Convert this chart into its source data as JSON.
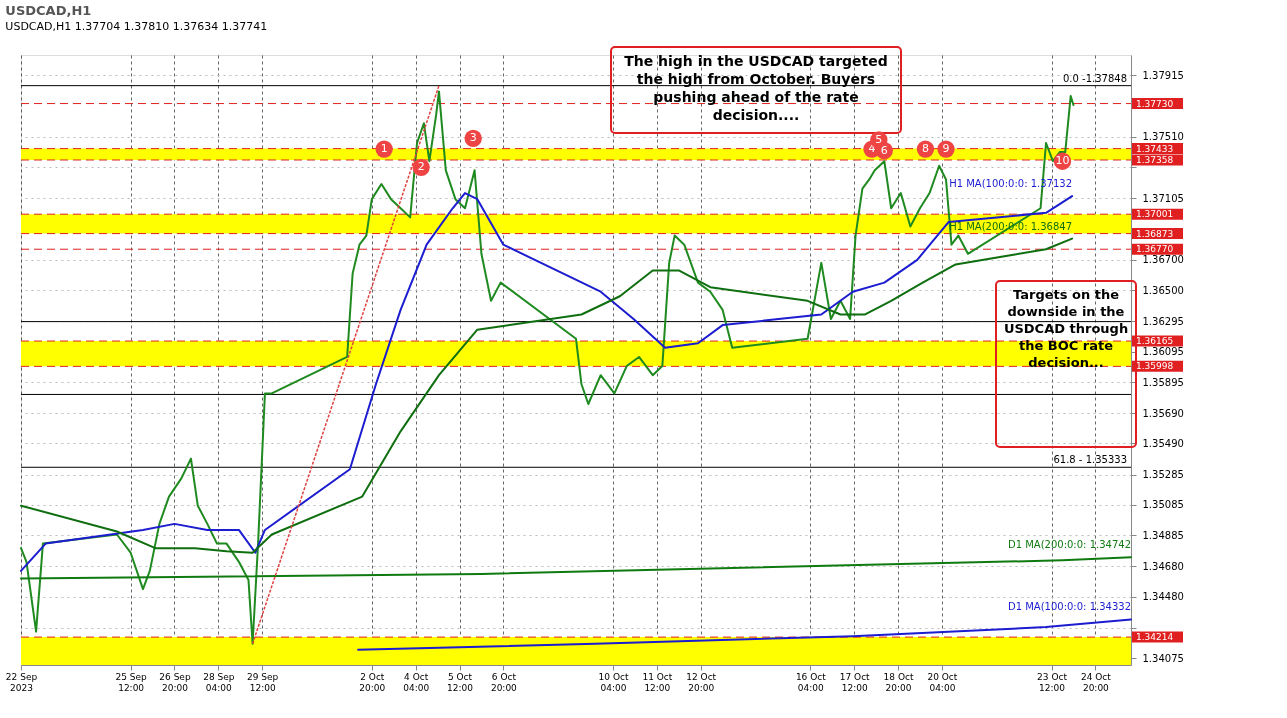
{
  "chart_data": {
    "type": "line",
    "title": "USDCAD,H1",
    "subtitle": "USDCAD,H1  1.37704 1.37810 1.37634 1.37741",
    "xlim": [
      "2023-09-22T04:00",
      "2023-10-25T22:00"
    ],
    "ylim": [
      1.3403,
      1.3805
    ],
    "xticks": [
      {
        "value": "2023-09-22T04:00",
        "label": "22 Sep 2023"
      },
      {
        "value": "2023-09-25T12:00",
        "label": "25 Sep 12:00"
      },
      {
        "value": "2023-09-26T20:00",
        "label": "26 Sep 20:00"
      },
      {
        "value": "2023-09-28T04:00",
        "label": "28 Sep 04:00"
      },
      {
        "value": "2023-09-29T12:00",
        "label": "29 Sep 12:00"
      },
      {
        "value": "2023-10-02T20:00",
        "label": "2 Oct 20:00"
      },
      {
        "value": "2023-10-04T04:00",
        "label": "4 Oct 04:00"
      },
      {
        "value": "2023-10-05T12:00",
        "label": "5 Oct 12:00"
      },
      {
        "value": "2023-10-06T20:00",
        "label": "6 Oct 20:00"
      },
      {
        "value": "2023-10-10T04:00",
        "label": "10 Oct 04:00"
      },
      {
        "value": "2023-10-11T12:00",
        "label": "11 Oct 12:00"
      },
      {
        "value": "2023-10-12T20:00",
        "label": "12 Oct 20:00"
      },
      {
        "value": "2023-10-16T04:00",
        "label": "16 Oct 04:00"
      },
      {
        "value": "2023-10-17T12:00",
        "label": "17 Oct 12:00"
      },
      {
        "value": "2023-10-18T20:00",
        "label": "18 Oct 20:00"
      },
      {
        "value": "2023-10-20T04:00",
        "label": "20 Oct 04:00"
      },
      {
        "value": "2023-10-23T12:00",
        "label": "23 Oct 12:00"
      },
      {
        "value": "2023-10-24T20:00",
        "label": "24 Oct 20:00"
      }
    ],
    "yticks": [
      1.37915,
      {
        "value": 1.3751,
        "label": "1.37510"
      },
      {
        "value": 1.3731,
        "label": null
      },
      1.37105,
      {
        "value": 1.367,
        "label": "1.36700"
      },
      {
        "value": 1.365,
        "label": "1.36500"
      },
      1.36295,
      1.36095,
      1.35895,
      {
        "value": 1.3569,
        "label": "1.35690"
      },
      {
        "value": 1.3549,
        "label": "1.35490"
      },
      1.35285,
      1.35085,
      1.34885,
      {
        "value": 1.3468,
        "label": "1.34680"
      },
      {
        "value": 1.3448,
        "label": "1.34480"
      },
      {
        "value": 1.34275,
        "label": null
      },
      1.34075
    ],
    "grid": true,
    "series": [
      {
        "color": "#1f8a1f",
        "x": [
          "2023-09-22T04:00",
          "2023-09-22T08:00",
          "2023-09-22T15:00",
          "2023-09-22T20:00",
          "2023-09-25T02:00",
          "2023-09-25T12:00",
          "2023-09-25T21:00",
          "2023-09-26T02:00",
          "2023-09-26T09:00",
          "2023-09-26T16:00",
          "2023-09-27T01:00",
          "2023-09-27T08:00",
          "2023-09-27T13:00",
          "2023-09-27T20:00",
          "2023-09-28T03:00",
          "2023-09-28T10:00",
          "2023-09-28T19:00",
          "2023-09-29T02:00",
          "2023-09-29T05:00",
          "2023-09-29T09:00",
          "2023-09-29T14:00",
          "2023-09-29T19:00",
          "2023-10-02T02:00",
          "2023-10-02T06:00",
          "2023-10-02T11:00",
          "2023-10-02T16:00",
          "2023-10-02T20:00",
          "2023-10-03T03:00",
          "2023-10-03T10:00",
          "2023-10-03T17:00",
          "2023-10-04T00:00",
          "2023-10-04T05:00",
          "2023-10-04T10:00",
          "2023-10-04T14:00",
          "2023-10-04T19:00",
          "2023-10-04T21:00",
          "2023-10-05T02:00",
          "2023-10-05T09:00",
          "2023-10-05T16:00",
          "2023-10-05T23:00",
          "2023-10-06T04:00",
          "2023-10-06T11:00",
          "2023-10-06T18:00",
          "2023-10-09T01:00",
          "2023-10-09T05:00",
          "2023-10-09T10:00",
          "2023-10-09T19:00",
          "2023-10-10T05:00",
          "2023-10-10T14:00",
          "2023-10-10T23:00",
          "2023-10-11T09:00",
          "2023-10-11T16:00",
          "2023-10-11T21:00",
          "2023-10-12T01:00",
          "2023-10-12T08:00",
          "2023-10-12T18:00",
          "2023-10-13T03:00",
          "2023-10-13T12:00",
          "2023-10-13T19:00",
          "2023-10-16T02:00",
          "2023-10-16T12:00",
          "2023-10-16T19:00",
          "2023-10-17T02:00",
          "2023-10-17T09:00",
          "2023-10-17T13:00",
          "2023-10-17T18:00",
          "2023-10-17T23:00",
          "2023-10-18T03:00",
          "2023-10-18T10:00",
          "2023-10-18T15:00",
          "2023-10-18T22:00",
          "2023-10-19T05:00",
          "2023-10-19T12:00",
          "2023-10-19T19:00",
          "2023-10-20T02:00",
          "2023-10-20T07:00",
          "2023-10-20T11:00",
          "2023-10-20T16:00",
          "2023-10-20T23:00",
          "2023-10-23T04:00",
          "2023-10-23T08:00",
          "2023-10-23T13:00",
          "2023-10-23T18:00",
          "2023-10-23T22:00",
          "2023-10-24T02:00",
          "2023-10-24T04:00"
        ],
        "values": [
          1.348,
          1.3471,
          1.3425,
          1.3483,
          1.3489,
          1.3477,
          1.3453,
          1.3465,
          1.3496,
          1.3514,
          1.3526,
          1.3539,
          1.3508,
          1.3496,
          1.3483,
          1.3483,
          1.3471,
          1.3459,
          1.3417,
          1.3483,
          1.3582,
          1.3582,
          1.3606,
          1.3661,
          1.368,
          1.3686,
          1.371,
          1.372,
          1.371,
          1.3704,
          1.3698,
          1.3747,
          1.376,
          1.3735,
          1.3766,
          1.3781,
          1.3729,
          1.371,
          1.3704,
          1.3729,
          1.3674,
          1.3643,
          1.3655,
          1.3618,
          1.3588,
          1.3575,
          1.3594,
          1.3582,
          1.36,
          1.3606,
          1.3594,
          1.36,
          1.3668,
          1.3686,
          1.368,
          1.3655,
          1.3649,
          1.3637,
          1.3612,
          1.3618,
          1.3668,
          1.3631,
          1.3643,
          1.3631,
          1.3686,
          1.3717,
          1.3723,
          1.3729,
          1.3735,
          1.3704,
          1.3714,
          1.3692,
          1.3704,
          1.3714,
          1.3732,
          1.3723,
          1.368,
          1.3686,
          1.3674,
          1.3704,
          1.3747,
          1.3735,
          1.3741,
          1.3741,
          1.3778,
          1.3772
        ]
      },
      {
        "name": "H1 MA(100:0:0: 1.37132",
        "color": "#1c1cd0",
        "x": [
          "2023-09-22T04:00",
          "2023-09-22T22:00",
          "2023-09-25T21:00",
          "2023-09-26T20:00",
          "2023-09-27T20:00",
          "2023-09-28T19:00",
          "2023-09-29T07:00",
          "2023-09-29T14:00",
          "2023-10-02T04:00",
          "2023-10-02T23:00",
          "2023-10-03T17:00",
          "2023-10-04T12:00",
          "2023-10-05T07:00",
          "2023-10-05T16:00",
          "2023-10-06T01:00",
          "2023-10-06T20:00",
          "2023-10-09T19:00",
          "2023-10-10T19:00",
          "2023-10-11T18:00",
          "2023-10-12T18:00",
          "2023-10-13T12:00",
          "2023-10-16T12:00",
          "2023-10-17T11:00",
          "2023-10-18T10:00",
          "2023-10-19T10:00",
          "2023-10-20T09:00",
          "2023-10-23T08:00",
          "2023-10-24T03:00"
        ],
        "values": [
          1.3465,
          1.3483,
          1.3492,
          1.3496,
          1.3492,
          1.3492,
          1.3477,
          1.3492,
          1.3532,
          1.3588,
          1.3637,
          1.368,
          1.3704,
          1.3714,
          1.371,
          1.368,
          1.3649,
          1.3631,
          1.3612,
          1.3615,
          1.3627,
          1.3634,
          1.3649,
          1.3655,
          1.367,
          1.3695,
          1.3701,
          1.3712
        ]
      },
      {
        "name": "H1 MA(200:0:0: 1.36847",
        "color": "#0f6e0f",
        "x": [
          "2023-09-22T04:00",
          "2023-09-25T02:00",
          "2023-09-26T06:00",
          "2023-09-27T11:00",
          "2023-09-28T10:00",
          "2023-09-29T05:00",
          "2023-09-29T19:00",
          "2023-10-02T13:00",
          "2023-10-03T17:00",
          "2023-10-04T21:00",
          "2023-10-06T01:00",
          "2023-10-09T05:00",
          "2023-10-10T09:00",
          "2023-10-11T09:00",
          "2023-10-12T04:00",
          "2023-10-13T03:00",
          "2023-10-16T02:00",
          "2023-10-17T02:00",
          "2023-10-17T20:00",
          "2023-10-18T15:00",
          "2023-10-19T14:00",
          "2023-10-20T14:00",
          "2023-10-23T08:00",
          "2023-10-24T03:00"
        ],
        "values": [
          1.3508,
          1.3491,
          1.348,
          1.348,
          1.3478,
          1.3477,
          1.3489,
          1.3514,
          1.3557,
          1.3594,
          1.3624,
          1.3634,
          1.3646,
          1.3663,
          1.3663,
          1.3652,
          1.3643,
          1.3634,
          1.3634,
          1.3643,
          1.3655,
          1.3667,
          1.3677,
          1.3684
        ]
      },
      {
        "name": "D1 MA(200:0:0: 1.34742",
        "color": "#0f7a0f",
        "x": [
          "2023-09-22T04:00",
          "2023-10-06T04:00",
          "2023-10-23T20:00",
          "2023-10-25T22:00"
        ],
        "values": [
          1.346,
          1.3463,
          1.3472,
          1.3474
        ]
      },
      {
        "name": "D1 MA(100:0:0: 1.34332",
        "color": "#1c1cd0",
        "x": [
          "2023-10-02T10:00",
          "2023-10-09T15:00",
          "2023-10-17T11:00",
          "2023-10-23T08:00",
          "2023-10-25T22:00"
        ],
        "values": [
          1.3413,
          1.3417,
          1.3422,
          1.3428,
          1.3433
        ]
      },
      {
        "color": "#e04040",
        "line_style": "dotted",
        "x": [
          "2023-09-29T05:00",
          "2023-10-04T21:00"
        ],
        "values": [
          1.3417,
          1.37848
        ]
      }
    ],
    "bands": [
      {
        "axis": "y",
        "from": 1.37358,
        "to": 1.37433,
        "color": "#ffff00"
      },
      {
        "axis": "y",
        "from": 1.36873,
        "to": 1.37001,
        "color": "#ffff00"
      },
      {
        "axis": "y",
        "from": 1.35998,
        "to": 1.36165,
        "color": "#ffff00"
      },
      {
        "axis": "y",
        "from": 1.3403,
        "to": 1.34214,
        "color": "#ffff00"
      }
    ],
    "ref_lines": [
      {
        "axis": "y",
        "value": 1.37848,
        "label": null,
        "color": "#000000",
        "line_style": "solid"
      },
      {
        "axis": "y",
        "value": 1.3773,
        "label": "1.37730",
        "color": "#e02020",
        "line_style": "dashed"
      },
      {
        "axis": "y",
        "value": 1.37433,
        "label": "1.37433",
        "color": "#e02020",
        "line_style": "dashed"
      },
      {
        "axis": "y",
        "value": 1.37358,
        "label": "1.37358",
        "color": "#e02020",
        "line_style": "dashed"
      },
      {
        "axis": "y",
        "value": 1.37001,
        "label": "1.37001",
        "color": "#e02020",
        "line_style": "dashed"
      },
      {
        "axis": "y",
        "value": 1.36873,
        "label": "1.36873",
        "color": "#e02020",
        "line_style": "dashed"
      },
      {
        "axis": "y",
        "value": 1.3677,
        "label": "1.36770",
        "color": "#e02020",
        "line_style": "dashed"
      },
      {
        "axis": "y",
        "value": 1.36293,
        "label": null,
        "color": "#000000",
        "line_style": "solid"
      },
      {
        "axis": "y",
        "value": 1.36165,
        "label": "1.36165",
        "color": "#e02020",
        "line_style": "dashed"
      },
      {
        "axis": "y",
        "value": 1.35998,
        "label": "1.35998",
        "color": "#e02020",
        "line_style": "dashed"
      },
      {
        "axis": "y",
        "value": 1.35813,
        "label": null,
        "color": "#000000",
        "line_style": "solid"
      },
      {
        "axis": "y",
        "value": 1.35333,
        "label": null,
        "color": "#000000",
        "line_style": "solid"
      },
      {
        "axis": "y",
        "value": 1.34214,
        "label": "1.34214",
        "color": "#e02020",
        "line_style": "dashed"
      }
    ],
    "annotations": [
      "The high in the USDCAD targeted the high from October. Buyers pushing ahead of the rate decision....",
      "Targets on the downside in the USDCAD through the BOC rate decision...",
      {
        "text": "0.0 -1.37848",
        "x": "2023-10-25T22:00",
        "y": 1.37848
      },
      {
        "text": "61.8 - 1.35333",
        "x": "2023-10-25T22:00",
        "y": 1.35333
      },
      {
        "text": "1",
        "x": "2023-10-03T05:00",
        "y": 1.3743
      },
      {
        "text": "2",
        "x": "2023-10-04T08:00",
        "y": 1.3731
      },
      {
        "text": "3",
        "x": "2023-10-05T22:00",
        "y": 1.375
      },
      {
        "text": "4",
        "x": "2023-10-18T01:00",
        "y": 1.3743
      },
      {
        "text": "5",
        "x": "2023-10-18T06:00",
        "y": 1.3749
      },
      {
        "text": "6",
        "x": "2023-10-18T10:00",
        "y": 1.3742
      },
      {
        "text": "8",
        "x": "2023-10-19T16:00",
        "y": 1.3743
      },
      {
        "text": "9",
        "x": "2023-10-20T07:00",
        "y": 1.3743
      },
      {
        "text": "10",
        "x": "2023-10-23T20:00",
        "y": 1.3735
      }
    ]
  }
}
